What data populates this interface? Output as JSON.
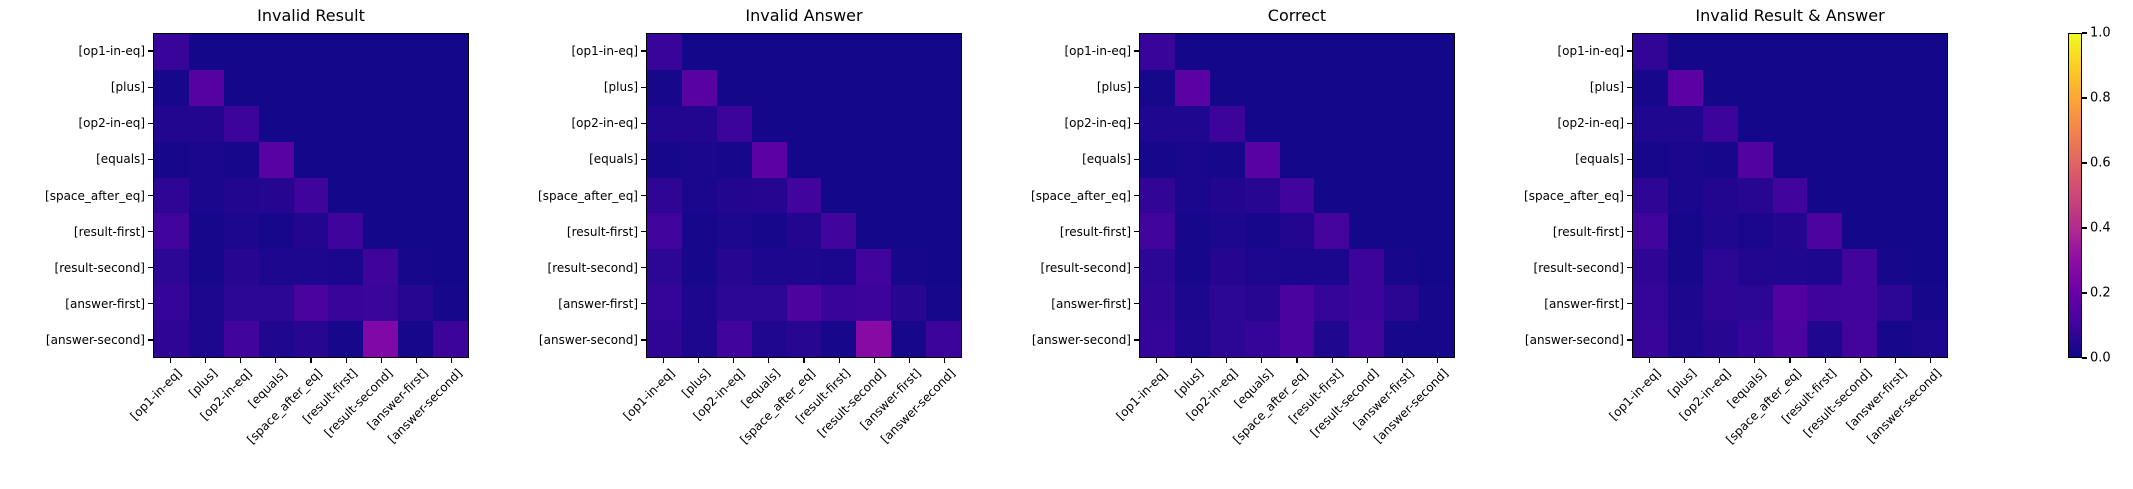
{
  "figure": {
    "background": "#ffffff",
    "text_color": "#000000",
    "colormap": "plasma",
    "plasma_anchors": [
      "#0d0887",
      "#41049d",
      "#6a00a8",
      "#8f0da4",
      "#b12a90",
      "#cc4778",
      "#e16462",
      "#f2844b",
      "#fca636",
      "#fcce25",
      "#f0f921"
    ]
  },
  "chart_data": [
    {
      "type": "heatmap",
      "title": "Invalid Result",
      "value_range": [
        0,
        1
      ],
      "x_categories": [
        "[op1-in-eq]",
        "[plus]",
        "[op2-in-eq]",
        "[equals]",
        "[space_after_eq]",
        "[result-first]",
        "[result-second]",
        "[answer-first]",
        "[answer-second]"
      ],
      "y_categories": [
        "[op1-in-eq]",
        "[plus]",
        "[op2-in-eq]",
        "[equals]",
        "[space_after_eq]",
        "[result-first]",
        "[result-second]",
        "[answer-first]",
        "[answer-second]"
      ],
      "matrix": [
        [
          0.08,
          0.01,
          0.01,
          0.01,
          0.01,
          0.01,
          0.01,
          0.01,
          0.01
        ],
        [
          0.02,
          0.15,
          0.01,
          0.01,
          0.01,
          0.01,
          0.01,
          0.01,
          0.01
        ],
        [
          0.04,
          0.04,
          0.09,
          0.01,
          0.01,
          0.01,
          0.01,
          0.01,
          0.01
        ],
        [
          0.02,
          0.025,
          0.02,
          0.155,
          0.01,
          0.01,
          0.01,
          0.01,
          0.01
        ],
        [
          0.065,
          0.025,
          0.04,
          0.045,
          0.095,
          0.01,
          0.01,
          0.01,
          0.01
        ],
        [
          0.1,
          0.02,
          0.03,
          0.02,
          0.04,
          0.095,
          0.01,
          0.01,
          0.01
        ],
        [
          0.06,
          0.02,
          0.05,
          0.03,
          0.03,
          0.025,
          0.095,
          0.02,
          0.01
        ],
        [
          0.075,
          0.03,
          0.06,
          0.06,
          0.12,
          0.08,
          0.085,
          0.05,
          0.02
        ],
        [
          0.065,
          0.03,
          0.1,
          0.035,
          0.05,
          0.02,
          0.26,
          0.02,
          0.09
        ]
      ]
    },
    {
      "type": "heatmap",
      "title": "Invalid Answer",
      "value_range": [
        0,
        1
      ],
      "x_categories": [
        "[op1-in-eq]",
        "[plus]",
        "[op2-in-eq]",
        "[equals]",
        "[space_after_eq]",
        "[result-first]",
        "[result-second]",
        "[answer-first]",
        "[answer-second]"
      ],
      "y_categories": [
        "[op1-in-eq]",
        "[plus]",
        "[op2-in-eq]",
        "[equals]",
        "[space_after_eq]",
        "[result-first]",
        "[result-second]",
        "[answer-first]",
        "[answer-second]"
      ],
      "matrix": [
        [
          0.08,
          0.01,
          0.01,
          0.01,
          0.01,
          0.01,
          0.01,
          0.01,
          0.01
        ],
        [
          0.02,
          0.155,
          0.01,
          0.01,
          0.01,
          0.01,
          0.01,
          0.01,
          0.01
        ],
        [
          0.04,
          0.04,
          0.09,
          0.01,
          0.01,
          0.01,
          0.01,
          0.01,
          0.01
        ],
        [
          0.02,
          0.025,
          0.02,
          0.16,
          0.01,
          0.01,
          0.01,
          0.01,
          0.01
        ],
        [
          0.065,
          0.025,
          0.04,
          0.045,
          0.1,
          0.01,
          0.01,
          0.01,
          0.01
        ],
        [
          0.1,
          0.02,
          0.03,
          0.02,
          0.04,
          0.1,
          0.01,
          0.01,
          0.01
        ],
        [
          0.06,
          0.02,
          0.05,
          0.03,
          0.03,
          0.025,
          0.1,
          0.02,
          0.01
        ],
        [
          0.075,
          0.03,
          0.06,
          0.06,
          0.13,
          0.08,
          0.09,
          0.05,
          0.02
        ],
        [
          0.065,
          0.03,
          0.1,
          0.035,
          0.05,
          0.02,
          0.28,
          0.02,
          0.09
        ]
      ]
    },
    {
      "type": "heatmap",
      "title": "Correct",
      "value_range": [
        0,
        1
      ],
      "x_categories": [
        "[op1-in-eq]",
        "[plus]",
        "[op2-in-eq]",
        "[equals]",
        "[space_after_eq]",
        "[result-first]",
        "[result-second]",
        "[answer-first]",
        "[answer-second]"
      ],
      "y_categories": [
        "[op1-in-eq]",
        "[plus]",
        "[op2-in-eq]",
        "[equals]",
        "[space_after_eq]",
        "[result-first]",
        "[result-second]",
        "[answer-first]",
        "[answer-second]"
      ],
      "matrix": [
        [
          0.08,
          0.01,
          0.01,
          0.01,
          0.01,
          0.01,
          0.01,
          0.01,
          0.01
        ],
        [
          0.02,
          0.16,
          0.01,
          0.01,
          0.01,
          0.01,
          0.01,
          0.01,
          0.01
        ],
        [
          0.035,
          0.035,
          0.09,
          0.01,
          0.01,
          0.01,
          0.01,
          0.01,
          0.01
        ],
        [
          0.02,
          0.025,
          0.02,
          0.155,
          0.01,
          0.01,
          0.01,
          0.01,
          0.01
        ],
        [
          0.07,
          0.025,
          0.04,
          0.05,
          0.1,
          0.01,
          0.01,
          0.01,
          0.01
        ],
        [
          0.1,
          0.02,
          0.03,
          0.02,
          0.04,
          0.11,
          0.01,
          0.01,
          0.01
        ],
        [
          0.06,
          0.02,
          0.045,
          0.03,
          0.025,
          0.025,
          0.09,
          0.02,
          0.01
        ],
        [
          0.07,
          0.03,
          0.06,
          0.05,
          0.125,
          0.075,
          0.09,
          0.055,
          0.02
        ],
        [
          0.075,
          0.035,
          0.06,
          0.075,
          0.12,
          0.035,
          0.1,
          0.02,
          0.02
        ]
      ]
    },
    {
      "type": "heatmap",
      "title": "Invalid Result & Answer",
      "value_range": [
        0,
        1
      ],
      "x_categories": [
        "[op1-in-eq]",
        "[plus]",
        "[op2-in-eq]",
        "[equals]",
        "[space_after_eq]",
        "[result-first]",
        "[result-second]",
        "[answer-first]",
        "[answer-second]"
      ],
      "y_categories": [
        "[op1-in-eq]",
        "[plus]",
        "[op2-in-eq]",
        "[equals]",
        "[space_after_eq]",
        "[result-first]",
        "[result-second]",
        "[answer-first]",
        "[answer-second]"
      ],
      "matrix": [
        [
          0.07,
          0.01,
          0.01,
          0.01,
          0.01,
          0.01,
          0.01,
          0.01,
          0.01
        ],
        [
          0.02,
          0.16,
          0.01,
          0.01,
          0.01,
          0.01,
          0.01,
          0.01,
          0.01
        ],
        [
          0.035,
          0.035,
          0.09,
          0.01,
          0.01,
          0.01,
          0.01,
          0.01,
          0.01
        ],
        [
          0.02,
          0.025,
          0.02,
          0.145,
          0.01,
          0.01,
          0.01,
          0.01,
          0.01
        ],
        [
          0.065,
          0.025,
          0.04,
          0.05,
          0.1,
          0.01,
          0.01,
          0.01,
          0.01
        ],
        [
          0.1,
          0.02,
          0.035,
          0.025,
          0.04,
          0.13,
          0.01,
          0.01,
          0.01
        ],
        [
          0.065,
          0.02,
          0.06,
          0.04,
          0.035,
          0.03,
          0.1,
          0.02,
          0.01
        ],
        [
          0.075,
          0.03,
          0.065,
          0.06,
          0.14,
          0.095,
          0.1,
          0.06,
          0.02
        ],
        [
          0.08,
          0.035,
          0.05,
          0.075,
          0.13,
          0.035,
          0.105,
          0.02,
          0.03
        ]
      ]
    }
  ],
  "colorbar": {
    "min": 0.0,
    "max": 1.0,
    "tick_labels": [
      "0.0",
      "0.2",
      "0.4",
      "0.6",
      "0.8",
      "1.0"
    ]
  }
}
